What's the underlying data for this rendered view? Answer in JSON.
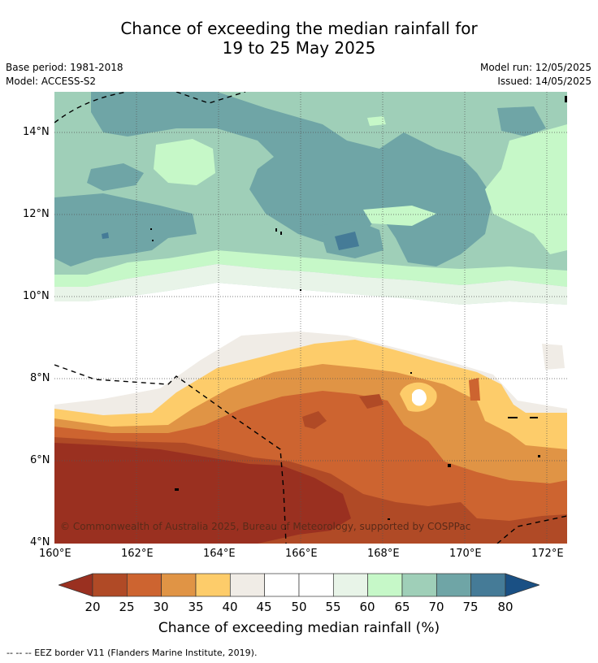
{
  "header": {
    "title_line1": "Chance of exceeding the median rainfall for",
    "title_line2": "19 to 25 May 2025",
    "base_period": "Base period: 1981-2018",
    "model": "Model: ACCESS-S2",
    "model_run": "Model run: 12/05/2025",
    "issued": "Issued: 14/05/2025"
  },
  "map": {
    "copyright": "© Commonwealth of Australia 2025, Bureau of Meteorology, supported by COSPPac",
    "lat_labels": [
      "14°N",
      "12°N",
      "10°N",
      "8°N",
      "6°N",
      "4°N"
    ],
    "lon_labels": [
      "160°E",
      "162°E",
      "164°E",
      "166°E",
      "168°E",
      "170°E",
      "172°E"
    ],
    "eez_line_color": "#000000"
  },
  "colorbar": {
    "ticks": [
      "20",
      "25",
      "30",
      "35",
      "40",
      "45",
      "50",
      "55",
      "60",
      "65",
      "70",
      "75",
      "80"
    ],
    "colors": [
      "#9a3020",
      "#b04a26",
      "#cd6430",
      "#e09445",
      "#fdcc6a",
      "#f0ece6",
      "#ffffff",
      "#ffffff",
      "#e8f4e8",
      "#c6f8c8",
      "#9fcfb8",
      "#6fa5a6",
      "#457b97",
      "#1a5084"
    ],
    "label": "Chance of exceeding median rainfall (%)"
  },
  "footnote": "-- -- -- EEZ border V11 (Flanders Marine Institute, 2019)."
}
